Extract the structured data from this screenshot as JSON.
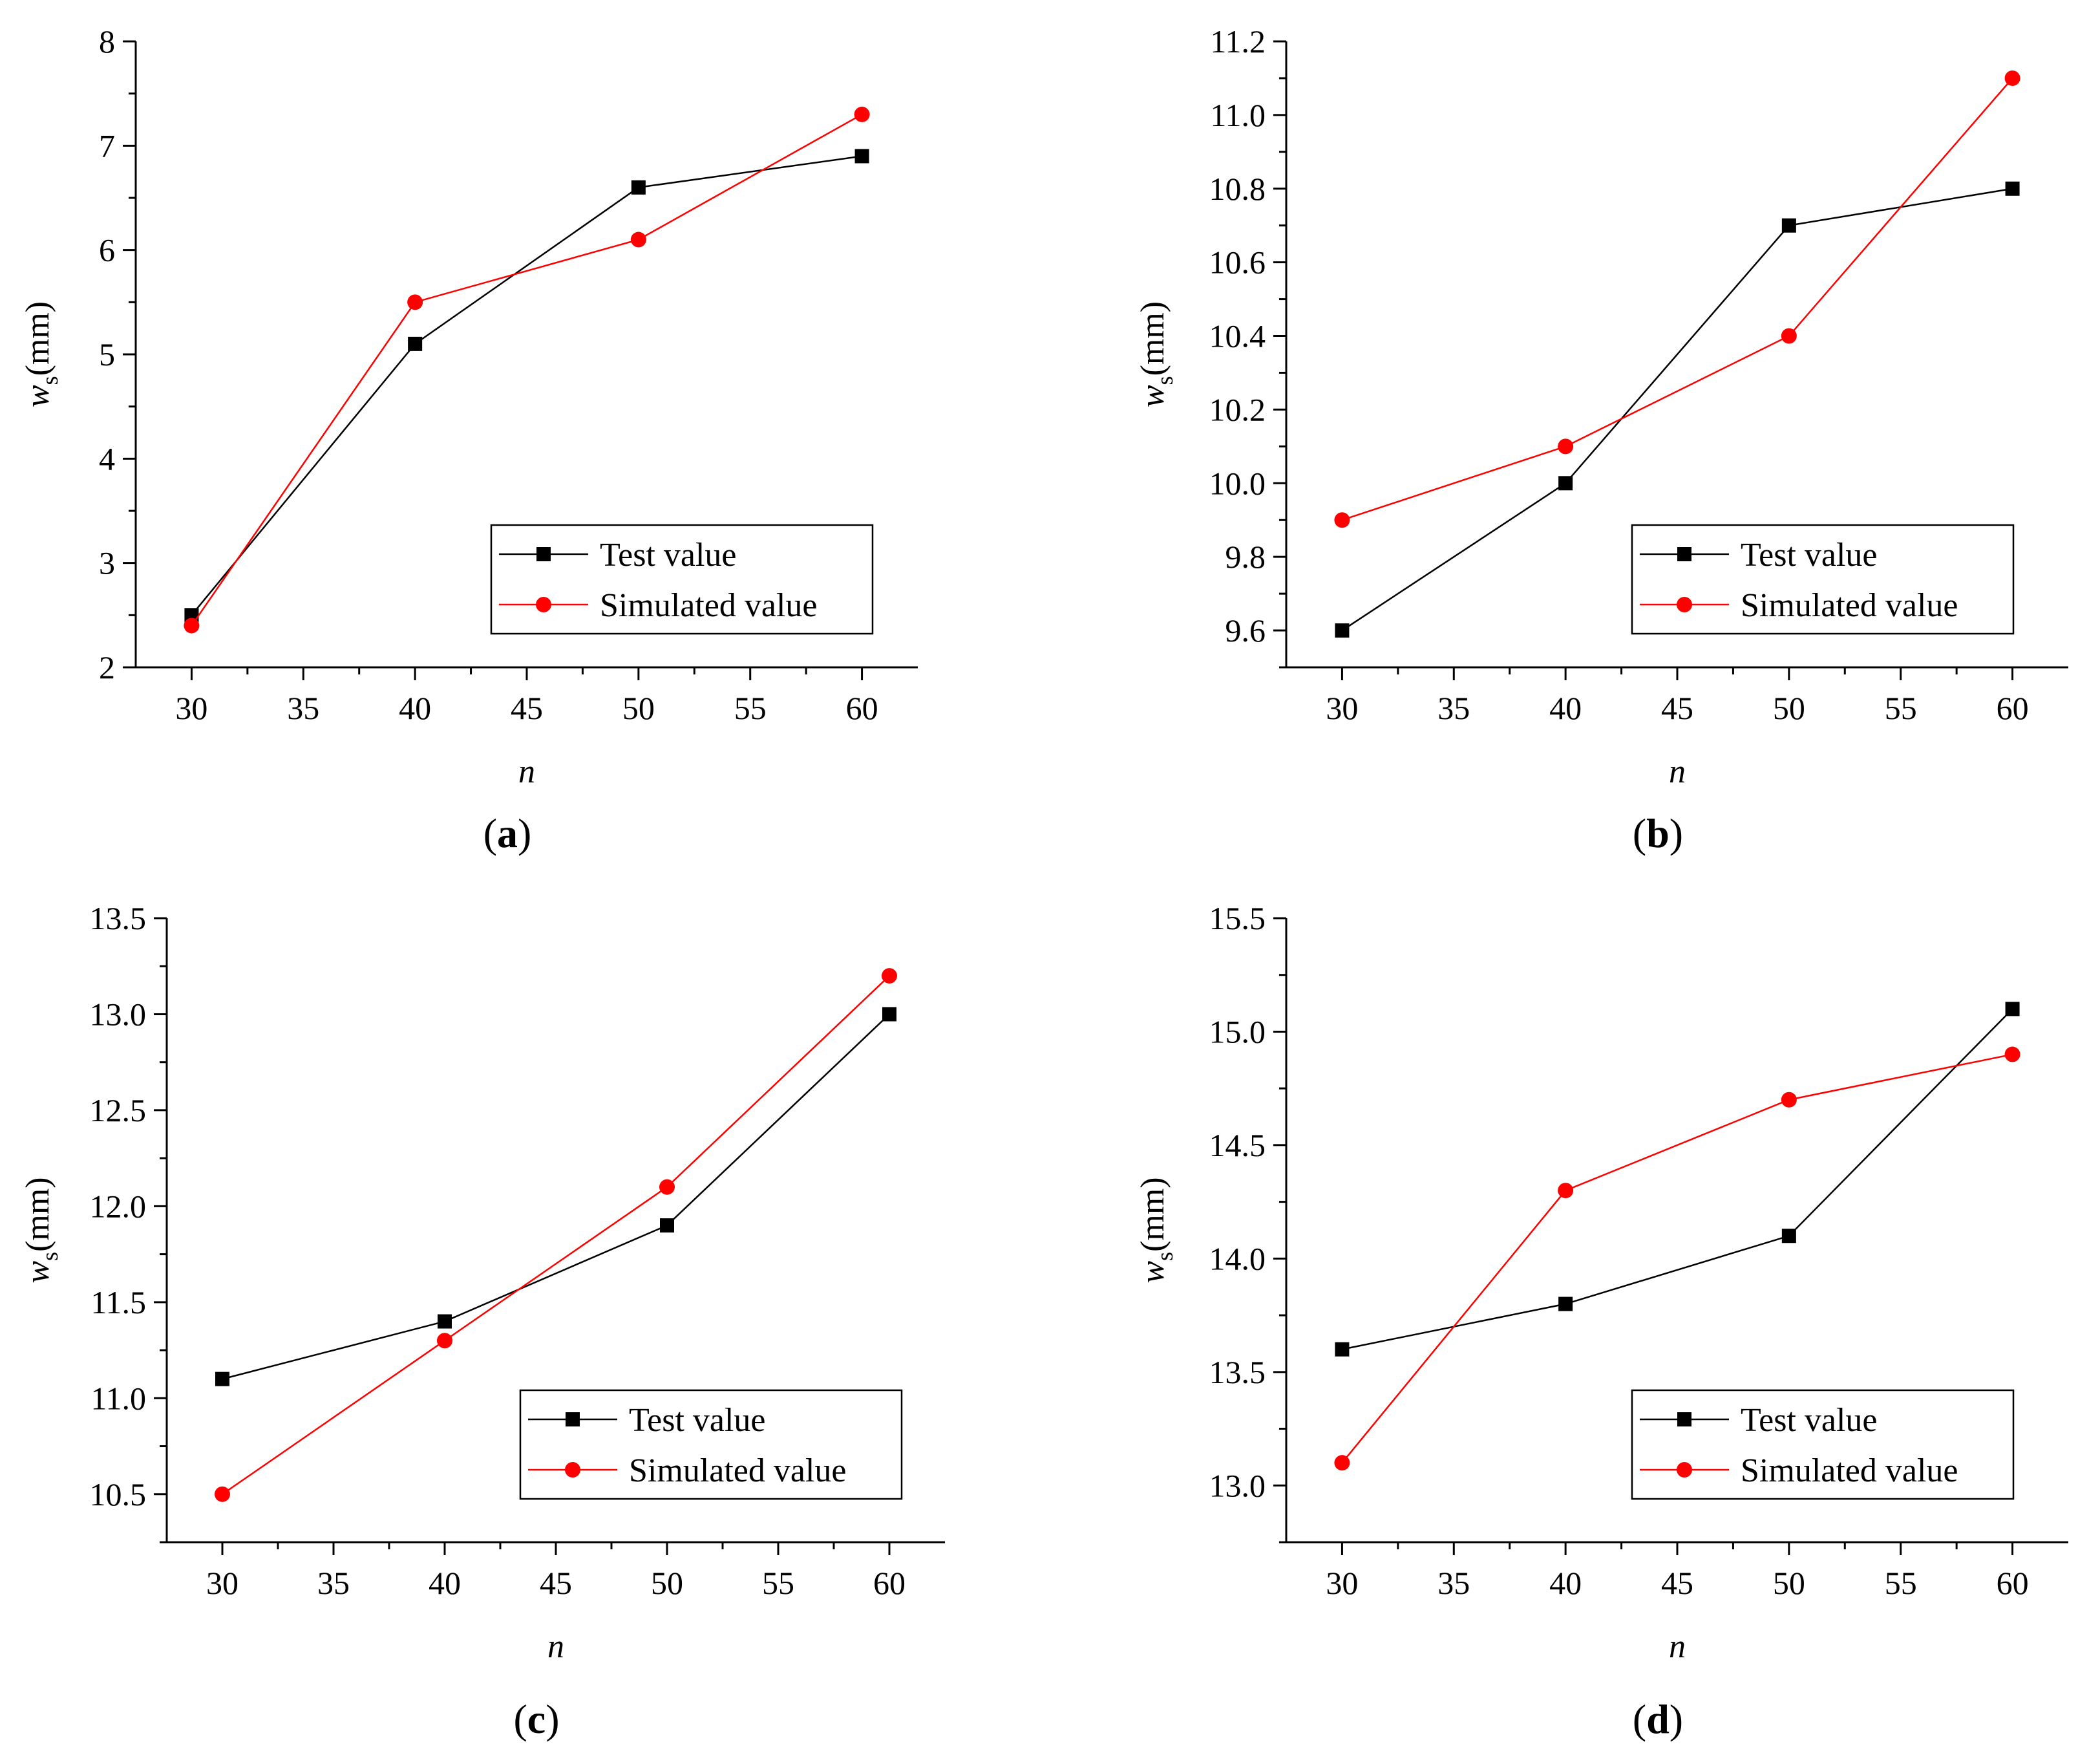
{
  "chart_data": [
    {
      "type": "line",
      "panel_label": "a",
      "xlabel": "n",
      "ylabel": "w",
      "ylabel_sub": "s",
      "ylabel_unit": "(mm)",
      "x": [
        30,
        40,
        50,
        60
      ],
      "xlim": [
        27.5,
        62.5
      ],
      "ylim": [
        2,
        8
      ],
      "xticks": [
        30,
        35,
        40,
        45,
        50,
        55,
        60
      ],
      "yticks": [
        2,
        3,
        4,
        5,
        6,
        7,
        8
      ],
      "ytick_labels": [
        "2",
        "3",
        "4",
        "5",
        "6",
        "7",
        "8"
      ],
      "legend_position": "bottom-right",
      "series": [
        {
          "name": "Test value",
          "color": "#000000",
          "marker": "square",
          "values": [
            2.5,
            5.1,
            6.6,
            6.9
          ]
        },
        {
          "name": "Simulated value",
          "color": "#ff0000",
          "marker": "circle",
          "values": [
            2.4,
            5.5,
            6.1,
            7.3
          ]
        }
      ]
    },
    {
      "type": "line",
      "panel_label": "b",
      "xlabel": "n",
      "ylabel": "w",
      "ylabel_sub": "s",
      "ylabel_unit": "(mm)",
      "x": [
        30,
        40,
        50,
        60
      ],
      "xlim": [
        27.5,
        62.5
      ],
      "ylim": [
        9.5,
        11.2
      ],
      "xticks": [
        30,
        35,
        40,
        45,
        50,
        55,
        60
      ],
      "yticks": [
        9.6,
        9.8,
        10.0,
        10.2,
        10.4,
        10.6,
        10.8,
        11.0,
        11.2
      ],
      "ytick_labels": [
        "9.6",
        "9.8",
        "10.0",
        "10.2",
        "10.4",
        "10.6",
        "10.8",
        "11.0",
        "11.2"
      ],
      "legend_position": "bottom-right",
      "series": [
        {
          "name": "Test value",
          "color": "#000000",
          "marker": "square",
          "values": [
            9.6,
            10.0,
            10.7,
            10.8
          ]
        },
        {
          "name": "Simulated value",
          "color": "#ff0000",
          "marker": "circle",
          "values": [
            9.9,
            10.1,
            10.4,
            11.1
          ]
        }
      ]
    },
    {
      "type": "line",
      "panel_label": "c",
      "xlabel": "n",
      "ylabel": "w",
      "ylabel_sub": "s",
      "ylabel_unit": "(mm)",
      "x": [
        30,
        40,
        50,
        60
      ],
      "xlim": [
        27.5,
        62.5
      ],
      "ylim": [
        10.25,
        13.5
      ],
      "xticks": [
        30,
        35,
        40,
        45,
        50,
        55,
        60
      ],
      "yticks": [
        10.5,
        11.0,
        11.5,
        12.0,
        12.5,
        13.0,
        13.5
      ],
      "ytick_labels": [
        "10.5",
        "11.0",
        "11.5",
        "12.0",
        "12.5",
        "13.0",
        "13.5"
      ],
      "legend_position": "bottom-right",
      "series": [
        {
          "name": "Test value",
          "color": "#000000",
          "marker": "square",
          "values": [
            11.1,
            11.4,
            11.9,
            13.0
          ]
        },
        {
          "name": "Simulated value",
          "color": "#ff0000",
          "marker": "circle",
          "values": [
            10.5,
            11.3,
            12.1,
            13.2
          ]
        }
      ]
    },
    {
      "type": "line",
      "panel_label": "d",
      "xlabel": "n",
      "ylabel": "w",
      "ylabel_sub": "s",
      "ylabel_unit": "(mm)",
      "x": [
        30,
        40,
        50,
        60
      ],
      "xlim": [
        27.5,
        62.5
      ],
      "ylim": [
        12.75,
        15.5
      ],
      "xticks": [
        30,
        35,
        40,
        45,
        50,
        55,
        60
      ],
      "yticks": [
        13.0,
        13.5,
        14.0,
        14.5,
        15.0,
        15.5
      ],
      "ytick_labels": [
        "13.0",
        "13.5",
        "14.0",
        "14.5",
        "15.0",
        "15.5"
      ],
      "legend_position": "bottom-right",
      "series": [
        {
          "name": "Test value",
          "color": "#000000",
          "marker": "square",
          "values": [
            13.6,
            13.8,
            14.1,
            15.1
          ]
        },
        {
          "name": "Simulated value",
          "color": "#ff0000",
          "marker": "circle",
          "values": [
            13.1,
            14.3,
            14.7,
            14.9
          ]
        }
      ]
    }
  ]
}
